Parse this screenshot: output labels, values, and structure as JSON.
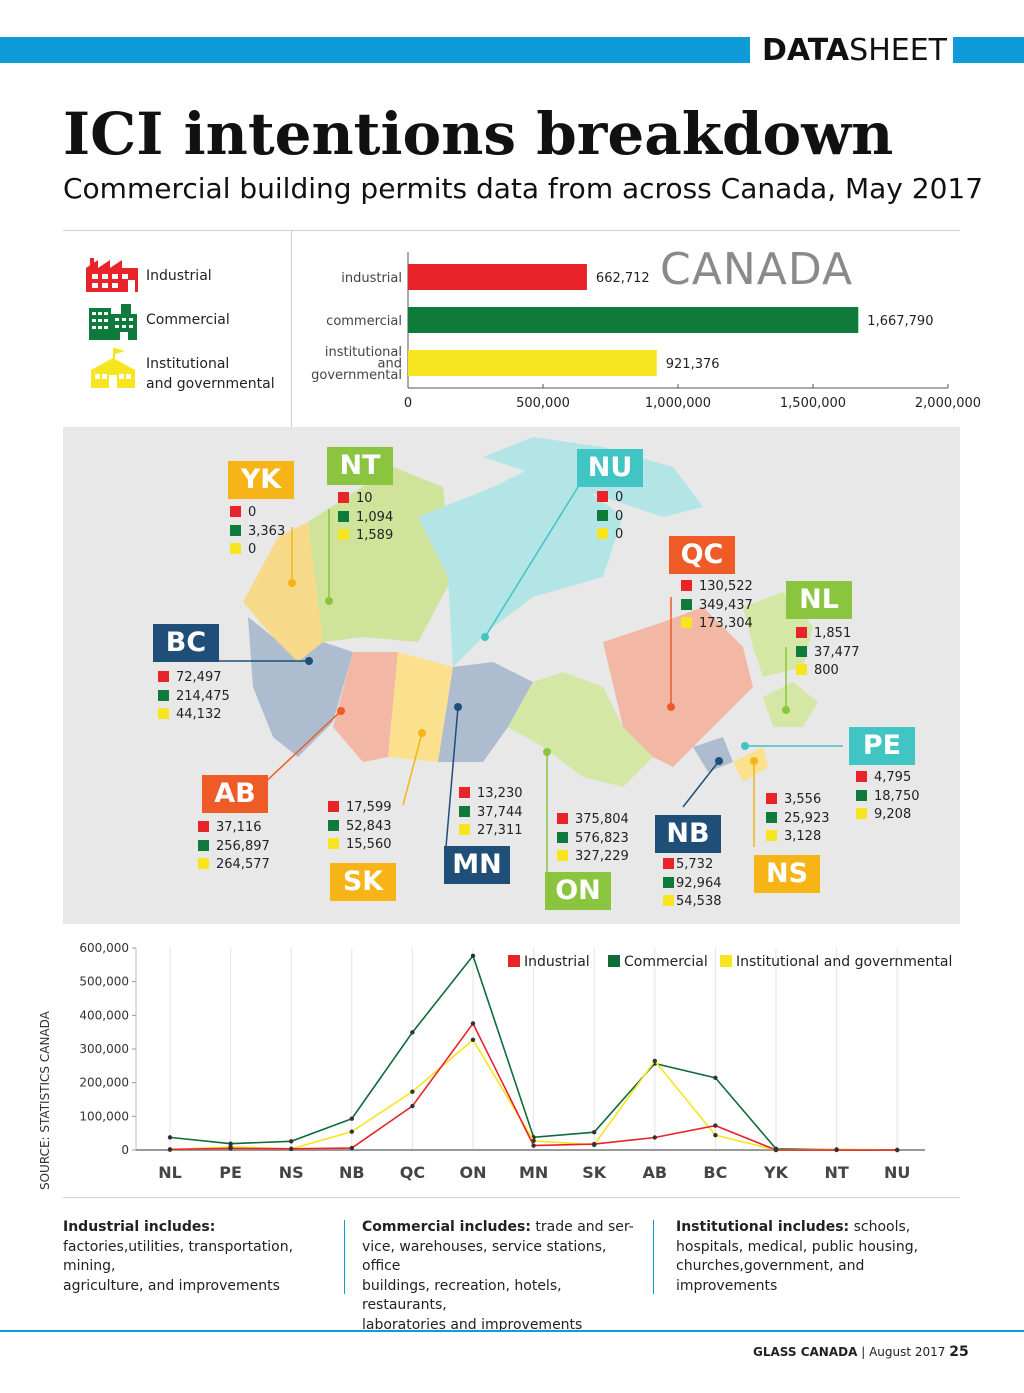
{
  "header": {
    "data_bold": "DATA",
    "sheet": "SHEET"
  },
  "title": "ICI intentions breakdown",
  "subtitle": "Commercial building permits data from across Canada, May 2017",
  "legend": [
    {
      "label": "Industrial",
      "color": "#e8232a",
      "icon": "factory-icon"
    },
    {
      "label": "Commercial",
      "color": "#0e7a3c",
      "icon": "office-building-icon"
    },
    {
      "label_line1": "Institutional",
      "label_line2": "and governmental",
      "color": "#f7e51f",
      "icon": "government-building-icon"
    }
  ],
  "canada": {
    "heading": "CANADA",
    "bars": [
      {
        "label": [
          "industrial"
        ],
        "value": 662712,
        "value_text": "662,712",
        "color": "#e8232a"
      },
      {
        "label": [
          "commercial"
        ],
        "value": 1667790,
        "value_text": "1,667,790",
        "color": "#0e7a3c"
      },
      {
        "label": [
          "institutional",
          "and",
          "governmental"
        ],
        "value": 921376,
        "value_text": "921,376",
        "color": "#f7e51f"
      }
    ],
    "ticks": [
      "0",
      "500,000",
      "1,000,000",
      "1,500,000",
      "2,000,000"
    ],
    "xlim": [
      0,
      2000000
    ]
  },
  "provinces": [
    {
      "code": "YK",
      "color": "#f6b417",
      "values": [
        "0",
        "3,363",
        "0"
      ]
    },
    {
      "code": "NT",
      "color": "#8bc540",
      "values": [
        "10",
        "1,094",
        "1,589"
      ]
    },
    {
      "code": "NU",
      "color": "#40c4c4",
      "values": [
        "0",
        "0",
        "0"
      ]
    },
    {
      "code": "QC",
      "color": "#ef5b26",
      "values": [
        "130,522",
        "349,437",
        "173,304"
      ]
    },
    {
      "code": "NL",
      "color": "#8bc540",
      "values": [
        "1,851",
        "37,477",
        "800"
      ]
    },
    {
      "code": "BC",
      "color": "#1f4e79",
      "values": [
        "72,497",
        "214,475",
        "44,132"
      ]
    },
    {
      "code": "PE",
      "color": "#40c4c4",
      "values": [
        "4,795",
        "18,750",
        "9,208"
      ]
    },
    {
      "code": "AB",
      "color": "#ef5b26",
      "values": [
        "37,116",
        "256,897",
        "264,577"
      ]
    },
    {
      "code": "SK",
      "color": "#f6b417",
      "values": [
        "17,599",
        "52,843",
        "15,560"
      ]
    },
    {
      "code": "MN",
      "color": "#1f4e79",
      "values": [
        "13,230",
        "37,744",
        "27,311"
      ]
    },
    {
      "code": "ON",
      "color": "#8bc540",
      "values": [
        "375,804",
        "576,823",
        "327,229"
      ]
    },
    {
      "code": "NB",
      "color": "#1f4e79",
      "values": [
        "5,732",
        "92,964",
        "54,538"
      ]
    },
    {
      "code": "NS",
      "color": "#f6b417",
      "values": [
        "3,556",
        "25,923",
        "3,128"
      ]
    }
  ],
  "chart_data": {
    "type": "line",
    "categories": [
      "NL",
      "PE",
      "NS",
      "NB",
      "QC",
      "ON",
      "MN",
      "SK",
      "AB",
      "BC",
      "YK",
      "NT",
      "NU"
    ],
    "series": [
      {
        "name": "Industrial",
        "color": "#e8232a",
        "values": [
          1851,
          4795,
          3556,
          5732,
          130522,
          375804,
          13230,
          17599,
          37116,
          72497,
          0,
          10,
          0
        ]
      },
      {
        "name": "Commercial",
        "color": "#0e6b3a",
        "values": [
          37477,
          18750,
          25923,
          92964,
          349437,
          576823,
          37744,
          52843,
          256897,
          214475,
          3363,
          1094,
          0
        ]
      },
      {
        "name": "Institutional and governmental",
        "color": "#f7e51f",
        "values": [
          800,
          9208,
          3128,
          54538,
          173304,
          327229,
          27311,
          15560,
          264577,
          44132,
          0,
          1589,
          0
        ]
      }
    ],
    "yticks": [
      "600,000",
      "500,000",
      "400,000",
      "300,000",
      "200,000",
      "100,000",
      "0"
    ],
    "ylim": [
      0,
      600000
    ],
    "legend_placement": "top-right"
  },
  "source": "SOURCE: STATISTICS CANADA",
  "footer": {
    "industrial": {
      "head": "Industrial includes:",
      "lines": [
        "factories,utilities, transportation, mining,",
        "agriculture, and improvements"
      ]
    },
    "commercial": {
      "head": "Commercial includes:",
      "first": " trade and ser-",
      "lines": [
        "vice, warehouses, service stations, office",
        "buildings, recreation, hotels, restaurants,",
        "laboratories and improvements"
      ]
    },
    "institutional": {
      "head": "Institutional includes:",
      "first": " schools,",
      "lines": [
        "hospitals, medical, public housing,",
        "churches,government, and improvements"
      ]
    }
  },
  "page_footer": {
    "magazine": "GLASS CANADA",
    "issue": "August 2017",
    "page": "25"
  }
}
